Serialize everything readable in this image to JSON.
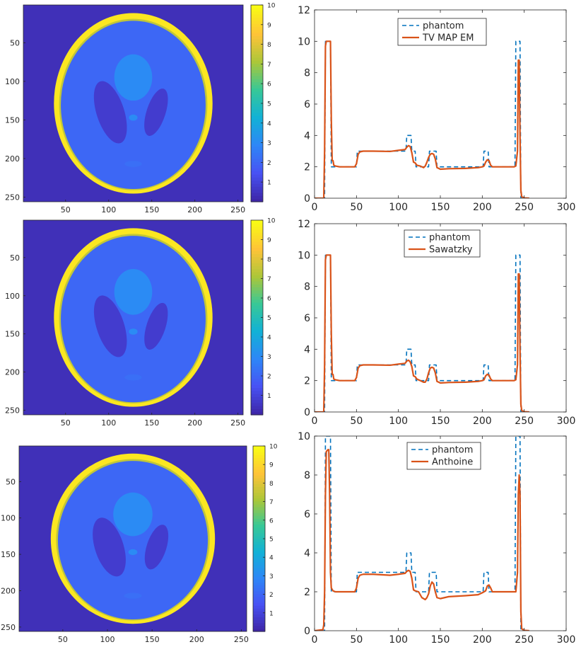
{
  "chart_data": [
    {
      "type": "heatmap",
      "image": "reconstruction-1",
      "x_ticks": [
        50,
        100,
        150,
        200,
        250
      ],
      "y_ticks": [
        50,
        100,
        150,
        200,
        250
      ],
      "xlim": [
        1,
        256
      ],
      "ylim": [
        1,
        256
      ],
      "colorbar_ticks": [
        1,
        2,
        3,
        4,
        5,
        6,
        7,
        8,
        9,
        10
      ],
      "colorbar_range": [
        0,
        10
      ],
      "colormap": "parula"
    },
    {
      "type": "line",
      "xlim": [
        0,
        300
      ],
      "ylim": [
        0,
        12
      ],
      "x_ticks": [
        0,
        50,
        100,
        150,
        200,
        250,
        300
      ],
      "y_ticks": [
        0,
        2,
        4,
        6,
        8,
        10,
        12
      ],
      "legend_position": "top-center",
      "grid": false,
      "series": [
        {
          "name": "phantom",
          "style": "dashed",
          "color": "#0072BD",
          "x": [
            0,
            12,
            13,
            18,
            19,
            20,
            21,
            22,
            50,
            51,
            52,
            108,
            109,
            110,
            115,
            116,
            120,
            121,
            130,
            131,
            136,
            137,
            140,
            141,
            145,
            146,
            200,
            201,
            202,
            207,
            208,
            212,
            213,
            238,
            239,
            240,
            245,
            246,
            256
          ],
          "y": [
            0,
            0,
            10,
            10,
            10,
            2,
            2,
            2,
            2,
            3,
            3,
            3,
            3,
            4,
            4,
            3,
            3,
            2,
            2,
            2,
            2,
            3,
            3,
            3,
            3,
            2,
            2,
            2,
            3,
            3,
            2,
            2,
            2,
            2,
            2,
            10,
            10,
            0,
            0
          ]
        },
        {
          "name": "TV MAP EM",
          "style": "solid",
          "color": "#D95319",
          "x": [
            0,
            11,
            12,
            13,
            14,
            19,
            20,
            21,
            22,
            23,
            25,
            30,
            48,
            50,
            52,
            54,
            58,
            70,
            90,
            100,
            108,
            110,
            112,
            114,
            116,
            118,
            120,
            122,
            126,
            130,
            132,
            134,
            136,
            138,
            140,
            142,
            144,
            146,
            150,
            160,
            180,
            195,
            200,
            202,
            204,
            206,
            208,
            210,
            212,
            214,
            230,
            238,
            240,
            242,
            243,
            244,
            245,
            246,
            247,
            250,
            256
          ],
          "y": [
            0,
            0,
            3,
            9.7,
            10,
            10,
            5,
            2.4,
            2.4,
            2.1,
            2.05,
            2,
            2,
            2.2,
            2.8,
            2.95,
            3,
            3,
            2.98,
            3.05,
            3.1,
            3.25,
            3.35,
            3.3,
            2.9,
            2.3,
            2.25,
            2.1,
            2.05,
            1.95,
            2.05,
            2.3,
            2.6,
            2.8,
            2.85,
            2.8,
            2.5,
            1.95,
            1.85,
            1.88,
            1.9,
            1.95,
            2,
            2.05,
            2.3,
            2.45,
            2.4,
            2.1,
            2,
            2,
            2,
            2,
            2.05,
            3,
            8.8,
            8.8,
            4,
            0.5,
            0.1,
            0.02,
            0
          ]
        }
      ]
    },
    {
      "type": "heatmap",
      "image": "reconstruction-2",
      "x_ticks": [
        50,
        100,
        150,
        200,
        250
      ],
      "y_ticks": [
        50,
        100,
        150,
        200,
        250
      ],
      "xlim": [
        1,
        256
      ],
      "ylim": [
        1,
        256
      ],
      "colorbar_ticks": [
        1,
        2,
        3,
        4,
        5,
        6,
        7,
        8,
        9,
        10
      ],
      "colorbar_range": [
        0,
        10
      ],
      "colormap": "parula"
    },
    {
      "type": "line",
      "xlim": [
        0,
        300
      ],
      "ylim": [
        0,
        12
      ],
      "x_ticks": [
        0,
        50,
        100,
        150,
        200,
        250,
        300
      ],
      "y_ticks": [
        0,
        2,
        4,
        6,
        8,
        10,
        12
      ],
      "legend_position": "top-center",
      "grid": false,
      "series": [
        {
          "name": "phantom",
          "style": "dashed",
          "color": "#0072BD",
          "x": [
            0,
            12,
            13,
            18,
            19,
            20,
            21,
            22,
            50,
            51,
            52,
            108,
            109,
            110,
            115,
            116,
            120,
            121,
            130,
            131,
            136,
            137,
            140,
            141,
            145,
            146,
            200,
            201,
            202,
            207,
            208,
            212,
            213,
            238,
            239,
            240,
            245,
            246,
            256
          ],
          "y": [
            0,
            0,
            10,
            10,
            10,
            2,
            2,
            2,
            2,
            3,
            3,
            3,
            3,
            4,
            4,
            3,
            3,
            2,
            2,
            2,
            2,
            3,
            3,
            3,
            3,
            2,
            2,
            2,
            3,
            3,
            2,
            2,
            2,
            2,
            2,
            10,
            10,
            0,
            0
          ]
        },
        {
          "name": "Sawatzky",
          "style": "solid",
          "color": "#D95319",
          "x": [
            0,
            11,
            12,
            13,
            14,
            19,
            20,
            21,
            22,
            23,
            25,
            30,
            48,
            50,
            52,
            54,
            58,
            70,
            90,
            100,
            108,
            110,
            112,
            114,
            116,
            118,
            120,
            122,
            126,
            130,
            132,
            134,
            136,
            138,
            140,
            142,
            144,
            146,
            150,
            160,
            180,
            195,
            200,
            202,
            204,
            206,
            208,
            210,
            212,
            214,
            230,
            238,
            240,
            242,
            243,
            244,
            245,
            246,
            247,
            250,
            256
          ],
          "y": [
            0,
            0,
            3,
            9.7,
            10,
            10,
            5,
            2.4,
            2.4,
            2.1,
            2.05,
            2,
            2,
            2.2,
            2.8,
            2.95,
            3,
            3,
            2.98,
            3.05,
            3.1,
            3.25,
            3.3,
            3.2,
            2.9,
            2.3,
            2.25,
            2.1,
            2.0,
            1.9,
            1.9,
            2.1,
            2.5,
            2.8,
            2.85,
            2.8,
            2.5,
            1.95,
            1.85,
            1.88,
            1.9,
            1.95,
            2,
            2.05,
            2.3,
            2.4,
            2.35,
            2.1,
            2,
            2,
            2,
            2,
            2.05,
            3,
            8.8,
            8.8,
            4,
            0.5,
            0.1,
            0.02,
            0
          ]
        }
      ]
    },
    {
      "type": "heatmap",
      "image": "reconstruction-3",
      "x_ticks": [
        50,
        100,
        150,
        200,
        250
      ],
      "y_ticks": [
        50,
        100,
        150,
        200,
        250
      ],
      "xlim": [
        1,
        256
      ],
      "ylim": [
        1,
        256
      ],
      "colorbar_ticks": [
        1,
        2,
        3,
        4,
        5,
        6,
        7,
        8,
        9,
        10
      ],
      "colorbar_range": [
        0,
        10
      ],
      "colormap": "parula"
    },
    {
      "type": "line",
      "xlim": [
        0,
        300
      ],
      "ylim": [
        0,
        10
      ],
      "x_ticks": [
        0,
        50,
        100,
        150,
        200,
        250,
        300
      ],
      "y_ticks": [
        0,
        2,
        4,
        6,
        8,
        10
      ],
      "legend_position": "top-center",
      "grid": false,
      "series": [
        {
          "name": "phantom",
          "style": "dashed",
          "color": "#0072BD",
          "x": [
            0,
            12,
            13,
            18,
            19,
            20,
            21,
            22,
            50,
            51,
            52,
            108,
            109,
            110,
            115,
            116,
            120,
            121,
            130,
            131,
            136,
            137,
            140,
            141,
            145,
            146,
            200,
            201,
            202,
            207,
            208,
            212,
            213,
            238,
            239,
            240,
            245,
            246,
            256
          ],
          "y": [
            0,
            0,
            10,
            10,
            10,
            2,
            2,
            2,
            2,
            3,
            3,
            3,
            3,
            4,
            4,
            3,
            3,
            2,
            2,
            2,
            2,
            3,
            3,
            3,
            3,
            2,
            2,
            2,
            3,
            3,
            2,
            2,
            2,
            2,
            2,
            10,
            10,
            0,
            0
          ]
        },
        {
          "name": "Anthoine",
          "style": "solid",
          "color": "#D95319",
          "x": [
            0,
            10,
            11,
            12,
            13,
            14,
            16,
            17,
            18,
            19,
            20,
            22,
            25,
            30,
            48,
            50,
            52,
            54,
            58,
            70,
            90,
            100,
            108,
            110,
            112,
            114,
            116,
            118,
            120,
            124,
            128,
            132,
            134,
            136,
            138,
            140,
            142,
            144,
            146,
            150,
            160,
            180,
            195,
            200,
            202,
            204,
            206,
            208,
            210,
            212,
            230,
            238,
            240,
            242,
            243,
            244,
            245,
            246,
            247,
            250,
            256
          ],
          "y": [
            0,
            0.05,
            0.3,
            2,
            7,
            9.2,
            9.3,
            9.3,
            7,
            3,
            2.2,
            2.05,
            2,
            2,
            2,
            2.2,
            2.7,
            2.85,
            2.9,
            2.9,
            2.85,
            2.9,
            2.95,
            3.05,
            3.1,
            3.05,
            2.7,
            2.1,
            2.05,
            2.0,
            1.7,
            1.6,
            1.7,
            1.9,
            2.3,
            2.5,
            2.4,
            2.0,
            1.7,
            1.65,
            1.75,
            1.8,
            1.85,
            1.95,
            2.0,
            2.05,
            2.3,
            2.35,
            2.2,
            2.0,
            2.0,
            2.0,
            2.0,
            3,
            7,
            8,
            7,
            1,
            0.1,
            0.02,
            0
          ]
        }
      ]
    }
  ]
}
